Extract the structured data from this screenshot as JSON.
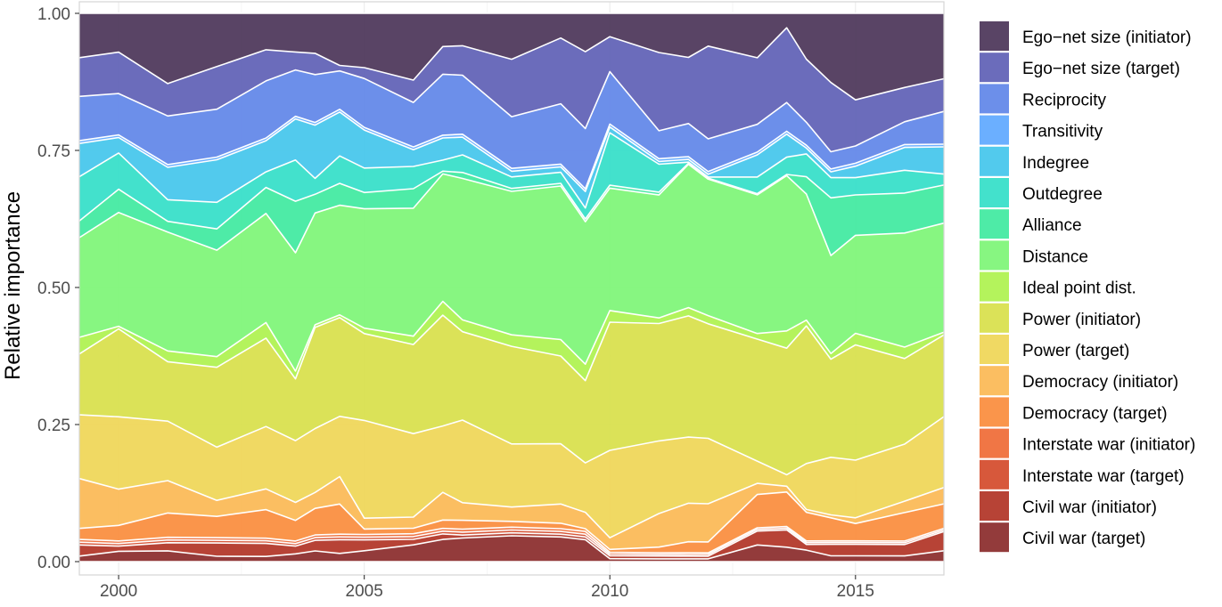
{
  "chart_data": {
    "type": "area",
    "stacked": true,
    "normalized": true,
    "ylabel": "Relative importance",
    "xlabel": "",
    "xlim": [
      1999.2,
      2016.8
    ],
    "ylim": [
      0,
      1
    ],
    "xticks": [
      2000,
      2005,
      2010,
      2015
    ],
    "xtick_labels": [
      "2000",
      "2005",
      "2010",
      "2015"
    ],
    "yticks": [
      0,
      0.25,
      0.5,
      0.75,
      1
    ],
    "ytick_labels": [
      "0.00",
      "0.25",
      "0.50",
      "0.75",
      "1.00"
    ],
    "grid": true,
    "legend_position": "right",
    "x": [
      1999.2,
      2000.0,
      2001.0,
      2002.0,
      2003.0,
      2003.6,
      2004.0,
      2004.5,
      2005.0,
      2006.0,
      2006.6,
      2007.0,
      2008.0,
      2009.0,
      2009.5,
      2010.0,
      2011.0,
      2011.6,
      2012.0,
      2013.0,
      2013.6,
      2014.0,
      2014.5,
      2015.0,
      2016.0,
      2016.8
    ],
    "series": [
      {
        "name": "Civil war (target)",
        "color": "#8a2a2a",
        "values": [
          0.01,
          0.02,
          0.02,
          0.01,
          0.01,
          0.015,
          0.02,
          0.015,
          0.02,
          0.03,
          0.04,
          0.04,
          0.045,
          0.045,
          0.04,
          0.005,
          0.005,
          0.005,
          0.005,
          0.03,
          0.025,
          0.02,
          0.01,
          0.01,
          0.01,
          0.02
        ]
      },
      {
        "name": "Civil war (initiator)",
        "color": "#b13325",
        "values": [
          0.02,
          0.01,
          0.015,
          0.025,
          0.025,
          0.015,
          0.02,
          0.025,
          0.02,
          0.01,
          0.01,
          0.005,
          0.005,
          0.005,
          0.005,
          0.005,
          0.005,
          0.005,
          0.005,
          0.025,
          0.03,
          0.01,
          0.02,
          0.02,
          0.02,
          0.035
        ]
      },
      {
        "name": "Interstate war (target)",
        "color": "#d44a2a",
        "values": [
          0.005,
          0.005,
          0.005,
          0.005,
          0.005,
          0.005,
          0.005,
          0.005,
          0.005,
          0.005,
          0.005,
          0.005,
          0.005,
          0.005,
          0.005,
          0.003,
          0.003,
          0.003,
          0.003,
          0.003,
          0.003,
          0.003,
          0.003,
          0.003,
          0.003,
          0.003
        ]
      },
      {
        "name": "Interstate war (initiator)",
        "color": "#ef6a35",
        "values": [
          0.005,
          0.005,
          0.005,
          0.005,
          0.005,
          0.005,
          0.005,
          0.005,
          0.005,
          0.005,
          0.005,
          0.005,
          0.005,
          0.005,
          0.005,
          0.003,
          0.003,
          0.003,
          0.003,
          0.003,
          0.003,
          0.003,
          0.003,
          0.003,
          0.003,
          0.003
        ]
      },
      {
        "name": "Democracy (target)",
        "color": "#fa8c3c",
        "values": [
          0.02,
          0.03,
          0.045,
          0.04,
          0.055,
          0.04,
          0.05,
          0.055,
          0.01,
          0.01,
          0.015,
          0.015,
          0.01,
          0.01,
          0.005,
          0.005,
          0.01,
          0.02,
          0.02,
          0.06,
          0.06,
          0.05,
          0.04,
          0.03,
          0.05,
          0.045
        ]
      },
      {
        "name": "Democracy (initiator)",
        "color": "#fbb954",
        "values": [
          0.09,
          0.07,
          0.06,
          0.03,
          0.04,
          0.035,
          0.03,
          0.05,
          0.02,
          0.02,
          0.05,
          0.03,
          0.025,
          0.035,
          0.03,
          0.02,
          0.06,
          0.07,
          0.07,
          0.02,
          0.01,
          0.005,
          0.005,
          0.01,
          0.02,
          0.03
        ]
      },
      {
        "name": "Power (target)",
        "color": "#efd656",
        "values": [
          0.115,
          0.14,
          0.11,
          0.1,
          0.12,
          0.12,
          0.12,
          0.11,
          0.18,
          0.15,
          0.12,
          0.14,
          0.11,
          0.11,
          0.09,
          0.15,
          0.13,
          0.12,
          0.12,
          0.04,
          0.02,
          0.08,
          0.1,
          0.1,
          0.1,
          0.13
        ]
      },
      {
        "name": "Power (initiator)",
        "color": "#d8e04a",
        "values": [
          0.11,
          0.17,
          0.11,
          0.15,
          0.17,
          0.12,
          0.19,
          0.18,
          0.16,
          0.16,
          0.2,
          0.15,
          0.17,
          0.16,
          0.15,
          0.22,
          0.21,
          0.22,
          0.21,
          0.22,
          0.22,
          0.24,
          0.17,
          0.2,
          0.15,
          0.15
        ]
      },
      {
        "name": "Ideal point dist.",
        "color": "#aef24e",
        "values": [
          0.03,
          0.005,
          0.02,
          0.02,
          0.03,
          0.015,
          0.005,
          0.005,
          0.01,
          0.015,
          0.025,
          0.02,
          0.02,
          0.03,
          0.03,
          0.02,
          0.01,
          0.015,
          0.015,
          0.01,
          0.03,
          0.01,
          0.01,
          0.02,
          0.02,
          0.005
        ]
      },
      {
        "name": "Distance",
        "color": "#7df576",
        "values": [
          0.18,
          0.22,
          0.22,
          0.2,
          0.21,
          0.23,
          0.21,
          0.2,
          0.22,
          0.23,
          0.23,
          0.24,
          0.25,
          0.28,
          0.26,
          0.21,
          0.22,
          0.26,
          0.25,
          0.25,
          0.27,
          0.22,
          0.17,
          0.17,
          0.2,
          0.2
        ]
      },
      {
        "name": "Alliance",
        "color": "#3fe9a0",
        "values": [
          0.03,
          0.045,
          0.02,
          0.04,
          0.05,
          0.1,
          0.035,
          0.04,
          0.03,
          0.035,
          0.005,
          0.01,
          0.005,
          0.005,
          0.005,
          0.005,
          0.005,
          0.002,
          0.002,
          0.002,
          0.002,
          0.03,
          0.1,
          0.07,
          0.07,
          0.07
        ]
      },
      {
        "name": "Outdegree",
        "color": "#33dec8",
        "values": [
          0.08,
          0.07,
          0.04,
          0.05,
          0.03,
          0.08,
          0.03,
          0.05,
          0.045,
          0.04,
          0.02,
          0.03,
          0.02,
          0.02,
          0.02,
          0.09,
          0.05,
          0.002,
          0.002,
          0.03,
          0.03,
          0.04,
          0.035,
          0.03,
          0.04,
          0.02
        ]
      },
      {
        "name": "Indegree",
        "color": "#43c6ec",
        "values": [
          0.06,
          0.03,
          0.06,
          0.08,
          0.06,
          0.08,
          0.1,
          0.08,
          0.07,
          0.03,
          0.04,
          0.03,
          0.01,
          0.01,
          0.03,
          0.01,
          0.005,
          0.005,
          0.005,
          0.04,
          0.04,
          0.01,
          0.01,
          0.02,
          0.04,
          0.05
        ]
      },
      {
        "name": "Transitivity",
        "color": "#5ea8ff",
        "values": [
          0.005,
          0.005,
          0.005,
          0.005,
          0.005,
          0.005,
          0.005,
          0.005,
          0.005,
          0.005,
          0.005,
          0.005,
          0.005,
          0.005,
          0.005,
          0.005,
          0.005,
          0.005,
          0.005,
          0.005,
          0.005,
          0.005,
          0.005,
          0.005,
          0.005,
          0.005
        ]
      },
      {
        "name": "Reciprocity",
        "color": "#5f86e8",
        "values": [
          0.08,
          0.08,
          0.09,
          0.09,
          0.11,
          0.09,
          0.09,
          0.07,
          0.09,
          0.08,
          0.11,
          0.1,
          0.09,
          0.11,
          0.11,
          0.09,
          0.05,
          0.06,
          0.06,
          0.05,
          0.05,
          0.04,
          0.03,
          0.03,
          0.04,
          0.06
        ]
      },
      {
        "name": "Ego−net size (target)",
        "color": "#5e5fb5",
        "values": [
          0.07,
          0.08,
          0.06,
          0.08,
          0.06,
          0.035,
          0.04,
          0.01,
          0.02,
          0.04,
          0.05,
          0.05,
          0.1,
          0.12,
          0.14,
          0.06,
          0.14,
          0.12,
          0.17,
          0.12,
          0.13,
          0.11,
          0.12,
          0.08,
          0.06,
          0.06
        ]
      },
      {
        "name": "Ego−net size (initiator)",
        "color": "#4b3458",
        "values": [
          0.08,
          0.075,
          0.13,
          0.1,
          0.07,
          0.075,
          0.075,
          0.095,
          0.1,
          0.12,
          0.06,
          0.055,
          0.08,
          0.045,
          0.07,
          0.04,
          0.07,
          0.08,
          0.06,
          0.08,
          0.025,
          0.08,
          0.12,
          0.15,
          0.13,
          0.12
        ]
      }
    ]
  },
  "legend_order": [
    "Ego−net size (initiator)",
    "Ego−net size (target)",
    "Reciprocity",
    "Transitivity",
    "Indegree",
    "Outdegree",
    "Alliance",
    "Distance",
    "Ideal point dist.",
    "Power (initiator)",
    "Power (target)",
    "Democracy (initiator)",
    "Democracy (target)",
    "Interstate war (initiator)",
    "Interstate war (target)",
    "Civil war (initiator)",
    "Civil war (target)"
  ]
}
